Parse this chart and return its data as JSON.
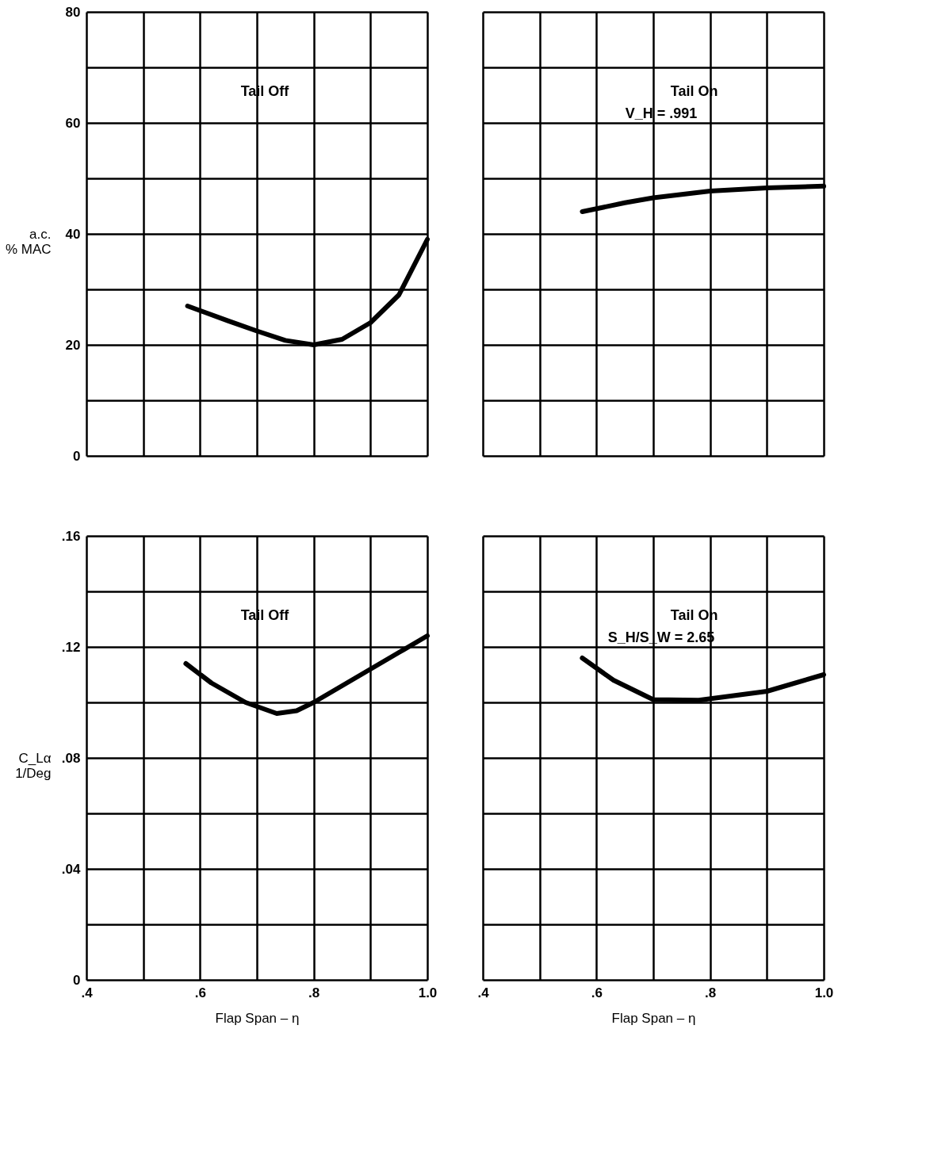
{
  "chart_data": [
    {
      "type": "line",
      "ylabel": "a.c.\n% MAC",
      "annotations": [
        "Tail Off"
      ],
      "xlim": [
        0.4,
        1.0
      ],
      "ylim": [
        0,
        80
      ],
      "xticks": [
        {
          "value": 0.4,
          "label": null
        },
        {
          "value": 0.5,
          "label": null
        },
        {
          "value": 0.6,
          "label": null
        },
        {
          "value": 0.7,
          "label": null
        },
        {
          "value": 0.8,
          "label": null
        },
        {
          "value": 0.9,
          "label": null
        },
        {
          "value": 1.0,
          "label": null
        }
      ],
      "yticks": [
        0,
        {
          "value": 10,
          "label": null
        },
        20,
        {
          "value": 30,
          "label": null
        },
        40,
        {
          "value": 50,
          "label": null
        },
        60,
        {
          "value": 70,
          "label": null
        },
        80
      ],
      "tick_labels": "y",
      "grid": true,
      "marker": "none",
      "line_style": "solid",
      "series": [
        {
          "color": "#000000",
          "x": [
            0.578,
            0.65,
            0.7,
            0.75,
            0.8,
            0.85,
            0.9,
            0.95,
            1.0
          ],
          "values": [
            27,
            24.3,
            22.5,
            20.8,
            20,
            21,
            24,
            29,
            39
          ]
        }
      ]
    },
    {
      "type": "line",
      "annotations": [
        "Tail On",
        "V_H = .991"
      ],
      "xlim": [
        0.4,
        1.0
      ],
      "ylim": [
        0,
        80
      ],
      "xticks": [
        {
          "value": 0.4,
          "label": null
        },
        {
          "value": 0.5,
          "label": null
        },
        {
          "value": 0.6,
          "label": null
        },
        {
          "value": 0.7,
          "label": null
        },
        {
          "value": 0.8,
          "label": null
        },
        {
          "value": 0.9,
          "label": null
        },
        {
          "value": 1.0,
          "label": null
        }
      ],
      "yticks": [
        {
          "value": 0,
          "label": null
        },
        {
          "value": 10,
          "label": null
        },
        {
          "value": 20,
          "label": null
        },
        {
          "value": 30,
          "label": null
        },
        {
          "value": 40,
          "label": null
        },
        {
          "value": 50,
          "label": null
        },
        {
          "value": 60,
          "label": null
        },
        {
          "value": 70,
          "label": null
        },
        {
          "value": 80,
          "label": null
        }
      ],
      "tick_labels": false,
      "grid": true,
      "marker": "none",
      "line_style": "solid",
      "series": [
        {
          "color": "#000000",
          "x": [
            0.575,
            0.65,
            0.7,
            0.8,
            0.9,
            1.0
          ],
          "values": [
            44,
            45.6,
            46.5,
            47.7,
            48.3,
            48.6
          ]
        }
      ]
    },
    {
      "type": "line",
      "xlabel": "Flap Span – η",
      "ylabel": "C_Lα\n1/Deg",
      "annotations": [
        "Tail Off"
      ],
      "xlim": [
        0.4,
        1.0
      ],
      "ylim": [
        0,
        0.16
      ],
      "xticks": [
        {
          "value": 0.4,
          "label": ".4"
        },
        {
          "value": 0.5,
          "label": null
        },
        {
          "value": 0.6,
          "label": ".6"
        },
        {
          "value": 0.7,
          "label": null
        },
        {
          "value": 0.8,
          "label": ".8"
        },
        {
          "value": 0.9,
          "label": null
        },
        {
          "value": 1.0,
          "label": "1.0"
        }
      ],
      "yticks": [
        0,
        {
          "value": 0.02,
          "label": null
        },
        {
          "value": 0.04,
          "label": ".04"
        },
        {
          "value": 0.06,
          "label": null
        },
        {
          "value": 0.08,
          "label": ".08"
        },
        {
          "value": 0.1,
          "label": null
        },
        {
          "value": 0.12,
          "label": ".12"
        },
        {
          "value": 0.14,
          "label": null
        },
        {
          "value": 0.16,
          "label": ".16"
        }
      ],
      "grid": true,
      "marker": "none",
      "line_style": "solid",
      "series": [
        {
          "color": "#000000",
          "x": [
            0.575,
            0.62,
            0.68,
            0.735,
            0.77,
            0.8,
            0.85,
            0.9,
            0.95,
            1.0
          ],
          "values": [
            0.114,
            0.107,
            0.1,
            0.096,
            0.097,
            0.1,
            0.106,
            0.112,
            0.118,
            0.124
          ]
        }
      ]
    },
    {
      "type": "line",
      "xlabel": "Flap Span – η",
      "annotations": [
        "Tail On",
        "S_H/S_W = 2.65"
      ],
      "xlim": [
        0.4,
        1.0
      ],
      "ylim": [
        0,
        0.16
      ],
      "xticks": [
        {
          "value": 0.4,
          "label": ".4"
        },
        {
          "value": 0.5,
          "label": null
        },
        {
          "value": 0.6,
          "label": ".6"
        },
        {
          "value": 0.7,
          "label": null
        },
        {
          "value": 0.8,
          "label": ".8"
        },
        {
          "value": 0.9,
          "label": null
        },
        {
          "value": 1.0,
          "label": "1.0"
        }
      ],
      "yticks": [
        {
          "value": 0,
          "label": null
        },
        {
          "value": 0.02,
          "label": null
        },
        {
          "value": 0.04,
          "label": null
        },
        {
          "value": 0.06,
          "label": null
        },
        {
          "value": 0.08,
          "label": null
        },
        {
          "value": 0.1,
          "label": null
        },
        {
          "value": 0.12,
          "label": null
        },
        {
          "value": 0.14,
          "label": null
        },
        {
          "value": 0.16,
          "label": null
        }
      ],
      "tick_labels": "x",
      "grid": true,
      "marker": "none",
      "line_style": "solid",
      "series": [
        {
          "color": "#000000",
          "x": [
            0.575,
            0.63,
            0.7,
            0.78,
            0.9,
            1.0
          ],
          "values": [
            0.116,
            0.108,
            0.101,
            0.1008,
            0.104,
            0.11
          ]
        }
      ]
    }
  ]
}
